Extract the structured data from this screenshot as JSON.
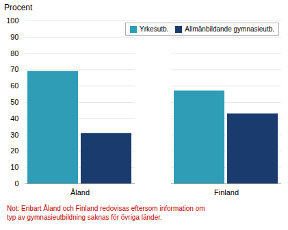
{
  "chart_data": {
    "type": "bar",
    "categories": [
      "Åland",
      "Finland"
    ],
    "series": [
      {
        "name": "Yrkesutb.",
        "values": [
          69,
          57
        ],
        "color": "#2E9DB5"
      },
      {
        "name": "Allmänbildande gymnasieutb.",
        "values": [
          31,
          43
        ],
        "color": "#1A3B6E"
      }
    ],
    "ylabel": "Procent",
    "ylim": [
      0,
      100
    ],
    "yticks": [
      0,
      10,
      20,
      30,
      40,
      50,
      60,
      70,
      80,
      90,
      100
    ],
    "grid": true,
    "legend": "upper right",
    "annotations": [
      {
        "text": "Not: Enbart Åland och Finland redovisas eftersom information om\ntyp av gymnasieutbildning saknas för övriga länder.",
        "color": "#C00000"
      }
    ]
  }
}
